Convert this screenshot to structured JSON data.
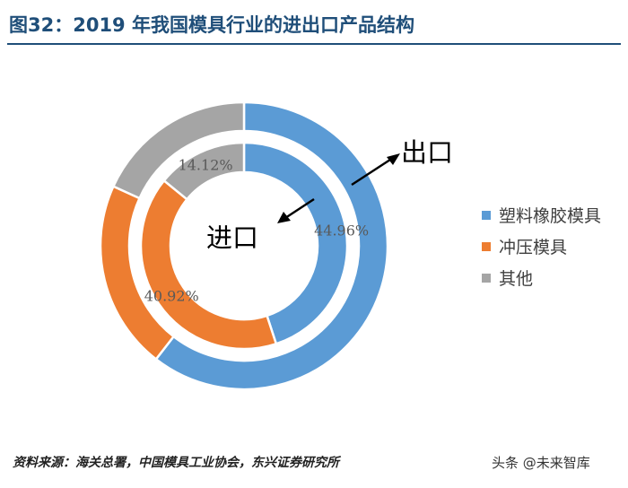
{
  "header": {
    "title": "图32：2019 年我国模具行业的进出口产品结构"
  },
  "chart_data": {
    "type": "pie",
    "title": "图32：2019 年我国模具行业的进出口产品结构",
    "categories": [
      "塑料橡胶模具",
      "冲压模具",
      "其他"
    ],
    "colors": [
      "#5b9bd5",
      "#ed7d31",
      "#a5a5a5"
    ],
    "series": [
      {
        "name": "出口",
        "values": [
          60.5,
          21.3,
          18.2
        ]
      },
      {
        "name": "进口",
        "values": [
          44.96,
          40.92,
          14.12
        ]
      }
    ],
    "data_labels": [
      "44.96%",
      "40.92%",
      "14.12%"
    ],
    "annotations": {
      "outer": "出口",
      "inner": "进口"
    },
    "legend_position": "right"
  },
  "footer": {
    "source": "资料来源：海关总署，中国模具工业协会，东兴证券研究所",
    "watermark": "头条 @未来智库"
  }
}
